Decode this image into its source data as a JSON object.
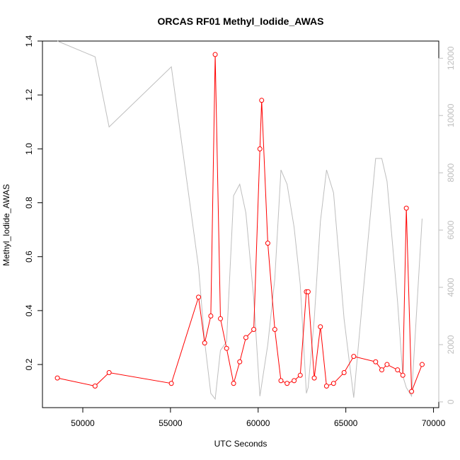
{
  "chart_data": {
    "type": "line",
    "title": "ORCAS RF01 Methyl_Iodide_AWAS",
    "xlabel": "UTC Seconds",
    "ylabel": "Methyl_Iodide_AWAS",
    "xlim": [
      47700,
      70300
    ],
    "ylim": [
      0.04,
      1.4
    ],
    "y2lim": [
      -200,
      12600
    ],
    "xticks": [
      50000,
      55000,
      60000,
      65000,
      70000
    ],
    "yticks": [
      0.2,
      0.4,
      0.6,
      0.8,
      1.0,
      1.2,
      1.4
    ],
    "y2ticks": [
      0,
      2000,
      4000,
      6000,
      8000,
      10000,
      12000
    ],
    "grid": false,
    "colors": {
      "primary": "#ff0000",
      "secondary": "#bebebe"
    },
    "series": [
      {
        "axis": "left",
        "style": "line-with-open-circles",
        "color": "#ff0000",
        "points": [
          [
            48550,
            0.15
          ],
          [
            50700,
            0.12
          ],
          [
            51500,
            0.17
          ],
          [
            55050,
            0.13
          ],
          [
            56600,
            0.45
          ],
          [
            56950,
            0.28
          ],
          [
            57300,
            0.38
          ],
          [
            57550,
            1.35
          ],
          [
            57850,
            0.37
          ],
          [
            58200,
            0.26
          ],
          [
            58600,
            0.13
          ],
          [
            58950,
            0.21
          ],
          [
            59300,
            0.3
          ],
          [
            59750,
            0.33
          ],
          [
            60100,
            1.0
          ],
          [
            60200,
            1.18
          ],
          [
            60550,
            0.65
          ],
          [
            60950,
            0.33
          ],
          [
            61300,
            0.14
          ],
          [
            61650,
            0.13
          ],
          [
            62050,
            0.14
          ],
          [
            62400,
            0.16
          ],
          [
            62750,
            0.47
          ],
          [
            62850,
            0.47
          ],
          [
            63200,
            0.15
          ],
          [
            63550,
            0.34
          ],
          [
            63900,
            0.12
          ],
          [
            64300,
            0.13
          ],
          [
            64900,
            0.17
          ],
          [
            65450,
            0.23
          ],
          [
            66700,
            0.21
          ],
          [
            67050,
            0.18
          ],
          [
            67350,
            0.2
          ],
          [
            67950,
            0.18
          ],
          [
            68250,
            0.16
          ],
          [
            68450,
            0.78
          ],
          [
            68750,
            0.1
          ],
          [
            69350,
            0.2
          ]
        ]
      },
      {
        "axis": "right",
        "style": "line",
        "color": "#bebebe",
        "points": [
          [
            48550,
            12600
          ],
          [
            50700,
            12050
          ],
          [
            51500,
            9600
          ],
          [
            55050,
            11700
          ],
          [
            56600,
            4700
          ],
          [
            56950,
            2100
          ],
          [
            57300,
            300
          ],
          [
            57550,
            100
          ],
          [
            57850,
            1800
          ],
          [
            58200,
            2100
          ],
          [
            58600,
            7200
          ],
          [
            58950,
            7600
          ],
          [
            59300,
            6600
          ],
          [
            59750,
            3600
          ],
          [
            60100,
            200
          ],
          [
            60550,
            2000
          ],
          [
            60950,
            4300
          ],
          [
            61300,
            8100
          ],
          [
            61650,
            7600
          ],
          [
            62050,
            6100
          ],
          [
            62400,
            4100
          ],
          [
            62750,
            300
          ],
          [
            62850,
            500
          ],
          [
            63200,
            2900
          ],
          [
            63550,
            6300
          ],
          [
            63900,
            8100
          ],
          [
            64300,
            7300
          ],
          [
            64900,
            2900
          ],
          [
            65450,
            150
          ],
          [
            66000,
            3900
          ],
          [
            66700,
            8500
          ],
          [
            67050,
            8500
          ],
          [
            67350,
            7700
          ],
          [
            67950,
            3500
          ],
          [
            68250,
            900
          ],
          [
            68450,
            500
          ],
          [
            68750,
            200
          ],
          [
            69350,
            6400
          ]
        ]
      }
    ]
  }
}
